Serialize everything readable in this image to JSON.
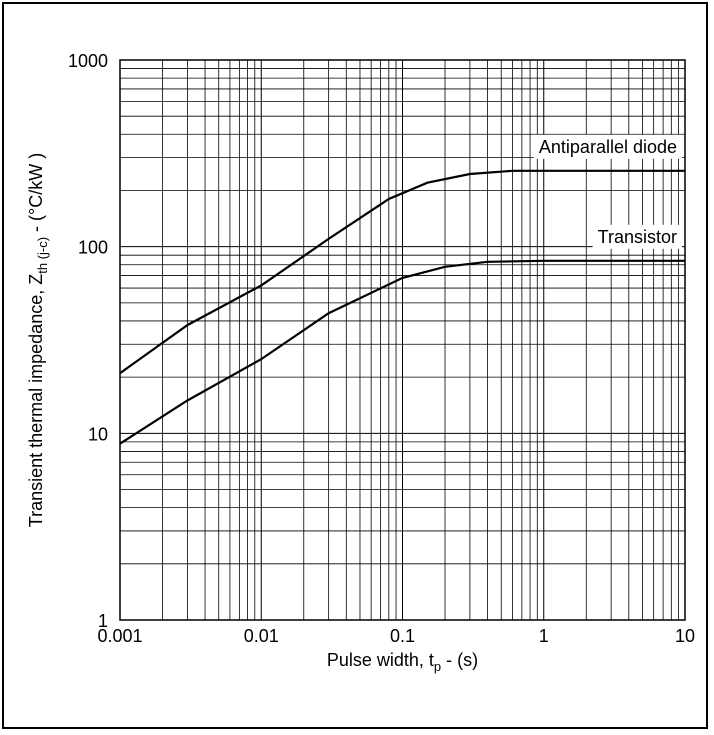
{
  "chart_data": {
    "type": "line",
    "x_scale": "log",
    "y_scale": "log",
    "xlim": [
      0.001,
      10
    ],
    "ylim": [
      1,
      1000
    ],
    "grid": true,
    "xlabel": "Pulse width, t",
    "xlabel_sub": "p",
    "xlabel_suffix": " - (s)",
    "ylabel": "Transient thermal impedance, Z",
    "ylabel_sub": "th (j-c)",
    "ylabel_suffix": " - (°C/kW )",
    "x_ticks": [
      {
        "value": 0.001,
        "label": "0.001"
      },
      {
        "value": 0.01,
        "label": "0.01"
      },
      {
        "value": 0.1,
        "label": "0.1"
      },
      {
        "value": 1,
        "label": "1"
      },
      {
        "value": 10,
        "label": "10"
      }
    ],
    "y_ticks": [
      {
        "value": 1,
        "label": "1"
      },
      {
        "value": 10,
        "label": "10"
      },
      {
        "value": 100,
        "label": "100"
      },
      {
        "value": 1000,
        "label": "1000"
      }
    ],
    "series": [
      {
        "name": "Antiparallel diode",
        "color": "#000000",
        "points": [
          [
            0.001,
            21
          ],
          [
            0.003,
            38
          ],
          [
            0.01,
            62
          ],
          [
            0.03,
            110
          ],
          [
            0.08,
            180
          ],
          [
            0.15,
            220
          ],
          [
            0.3,
            245
          ],
          [
            0.6,
            255
          ],
          [
            1,
            255
          ],
          [
            10,
            255
          ]
        ]
      },
      {
        "name": "Transistor",
        "color": "#000000",
        "points": [
          [
            0.001,
            8.8
          ],
          [
            0.003,
            15
          ],
          [
            0.01,
            25
          ],
          [
            0.03,
            44
          ],
          [
            0.1,
            68
          ],
          [
            0.2,
            78
          ],
          [
            0.4,
            83
          ],
          [
            1,
            84
          ],
          [
            10,
            84
          ]
        ]
      }
    ]
  }
}
